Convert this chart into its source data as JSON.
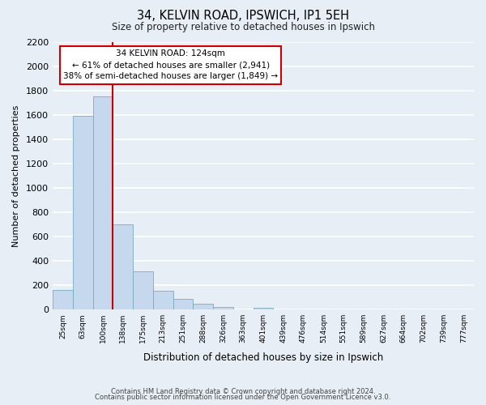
{
  "title1": "34, KELVIN ROAD, IPSWICH, IP1 5EH",
  "title2": "Size of property relative to detached houses in Ipswich",
  "xlabel": "Distribution of detached houses by size in Ipswich",
  "ylabel": "Number of detached properties",
  "categories": [
    "25sqm",
    "63sqm",
    "100sqm",
    "138sqm",
    "175sqm",
    "213sqm",
    "251sqm",
    "288sqm",
    "326sqm",
    "363sqm",
    "401sqm",
    "439sqm",
    "476sqm",
    "514sqm",
    "551sqm",
    "589sqm",
    "627sqm",
    "664sqm",
    "702sqm",
    "739sqm",
    "777sqm"
  ],
  "values": [
    160,
    1590,
    1750,
    700,
    315,
    155,
    85,
    50,
    20,
    0,
    15,
    0,
    0,
    0,
    0,
    0,
    0,
    0,
    0,
    0,
    0
  ],
  "bar_color": "#c5d8ed",
  "bar_edge_color": "#7aaabf",
  "vline_color": "#cc0000",
  "annotation_text": "34 KELVIN ROAD: 124sqm\n← 61% of detached houses are smaller (2,941)\n38% of semi-detached houses are larger (1,849) →",
  "annotation_box_color": "#ffffff",
  "annotation_edge_color": "#cc0000",
  "ylim": [
    0,
    2200
  ],
  "yticks": [
    0,
    200,
    400,
    600,
    800,
    1000,
    1200,
    1400,
    1600,
    1800,
    2000,
    2200
  ],
  "background_color": "#e8eef5",
  "grid_color": "#ffffff",
  "footer1": "Contains HM Land Registry data © Crown copyright and database right 2024.",
  "footer2": "Contains public sector information licensed under the Open Government Licence v3.0."
}
